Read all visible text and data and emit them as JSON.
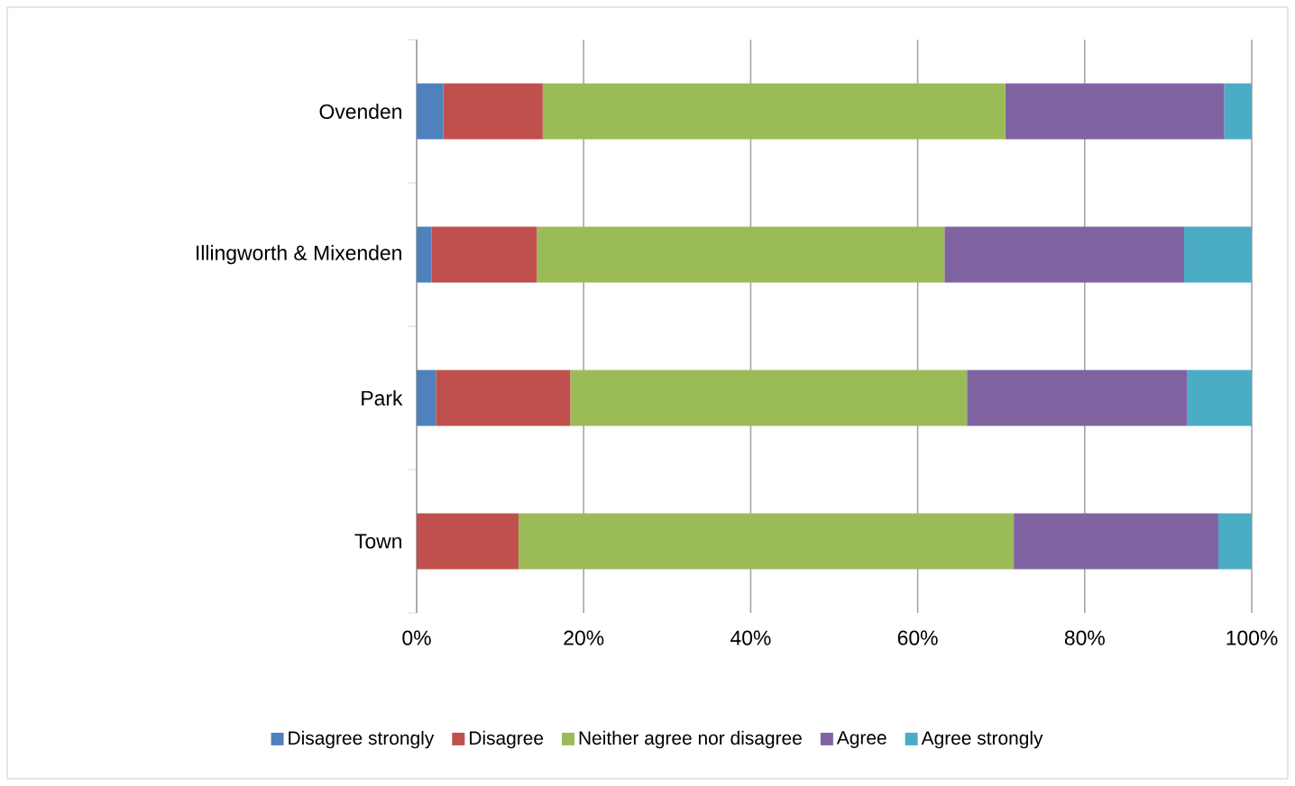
{
  "chart_data": {
    "type": "bar",
    "orientation": "horizontal",
    "stacked": true,
    "categories": [
      "Ovenden",
      "Illingworth & Mixenden",
      "Park",
      "Town"
    ],
    "series": [
      {
        "name": "Disagree strongly",
        "color": "#4f81bd",
        "values": [
          3.2,
          1.8,
          2.3,
          0
        ]
      },
      {
        "name": "Disagree",
        "color": "#c0504d",
        "values": [
          11.9,
          12.6,
          16.1,
          12.2
        ]
      },
      {
        "name": "Neither agree nor disagree",
        "color": "#9bbb59",
        "values": [
          55.4,
          48.8,
          47.5,
          59.3
        ]
      },
      {
        "name": "Agree",
        "color": "#8064a2",
        "values": [
          26.2,
          28.7,
          26.4,
          24.5
        ]
      },
      {
        "name": "Agree strongly",
        "color": "#4bacc6",
        "values": [
          3.3,
          8.1,
          7.7,
          4.0
        ]
      }
    ],
    "xlim": [
      0,
      100
    ],
    "xticks": [
      {
        "value": 0,
        "label": "0%"
      },
      {
        "value": 20,
        "label": "20%"
      },
      {
        "value": 40,
        "label": "40%"
      },
      {
        "value": 60,
        "label": "60%"
      },
      {
        "value": 80,
        "label": "80%"
      },
      {
        "value": 100,
        "label": "100%"
      }
    ],
    "grid": "x",
    "legend": "bottom"
  }
}
